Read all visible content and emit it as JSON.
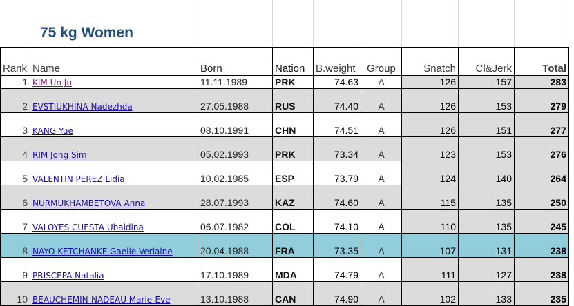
{
  "title": "75 kg Women",
  "columns": {
    "rank": "Rank",
    "name": "Name",
    "born": "Born",
    "nation": "Nation",
    "bweight": "B.weight",
    "group": "Group",
    "snatch": "Snatch",
    "cljerk": "Cl&Jerk",
    "total": "Total"
  },
  "rows": [
    {
      "rank": "1",
      "name": "KIM Un Ju",
      "born": "11.11.1989",
      "nation": "PRK",
      "bweight": "74.63",
      "group": "A",
      "snatch": "126",
      "cljerk": "157",
      "total": "283"
    },
    {
      "rank": "2",
      "name": "EVSTIUKHINA Nadezhda",
      "born": "27.05.1988",
      "nation": "RUS",
      "bweight": "74.40",
      "group": "A",
      "snatch": "126",
      "cljerk": "153",
      "total": "279"
    },
    {
      "rank": "3",
      "name": "KANG Yue",
      "born": "08.10.1991",
      "nation": "CHN",
      "bweight": "74.51",
      "group": "A",
      "snatch": "126",
      "cljerk": "151",
      "total": "277"
    },
    {
      "rank": "4",
      "name": "RIM Jong Sim",
      "born": "05.02.1993",
      "nation": "PRK",
      "bweight": "73.34",
      "group": "A",
      "snatch": "123",
      "cljerk": "153",
      "total": "276"
    },
    {
      "rank": "5",
      "name": "VALENTIN PEREZ Lidia",
      "born": "10.02.1985",
      "nation": "ESP",
      "bweight": "73.79",
      "group": "A",
      "snatch": "124",
      "cljerk": "140",
      "total": "264"
    },
    {
      "rank": "6",
      "name": "NURMUKHAMBETOVA Anna",
      "born": "28.07.1993",
      "nation": "KAZ",
      "bweight": "74.60",
      "group": "A",
      "snatch": "115",
      "cljerk": "135",
      "total": "250"
    },
    {
      "rank": "7",
      "name": "VALOYES CUESTA Ubaldina",
      "born": "06.07.1982",
      "nation": "COL",
      "bweight": "74.10",
      "group": "A",
      "snatch": "110",
      "cljerk": "135",
      "total": "245"
    },
    {
      "rank": "8",
      "name": "NAYO KETCHANKE Gaelle Verlaine",
      "born": "20.04.1988",
      "nation": "FRA",
      "bweight": "73.35",
      "group": "A",
      "snatch": "107",
      "cljerk": "131",
      "total": "238"
    },
    {
      "rank": "9",
      "name": "PRISCEPA Natalia",
      "born": "17.10.1989",
      "nation": "MDA",
      "bweight": "74.79",
      "group": "A",
      "snatch": "111",
      "cljerk": "127",
      "total": "238"
    },
    {
      "rank": "10",
      "name": "BEAUCHEMIN-NADEAU Marie-Eve",
      "born": "13.10.1988",
      "nation": "CAN",
      "bweight": "74.90",
      "group": "A",
      "snatch": "102",
      "cljerk": "133",
      "total": "235"
    }
  ],
  "colors": {
    "title": "#1f4e79",
    "highlight_row": "#92cddc",
    "shaded": "#dcdcdc",
    "link": "#1a0dab",
    "visited_link": "#7a1a7a"
  }
}
